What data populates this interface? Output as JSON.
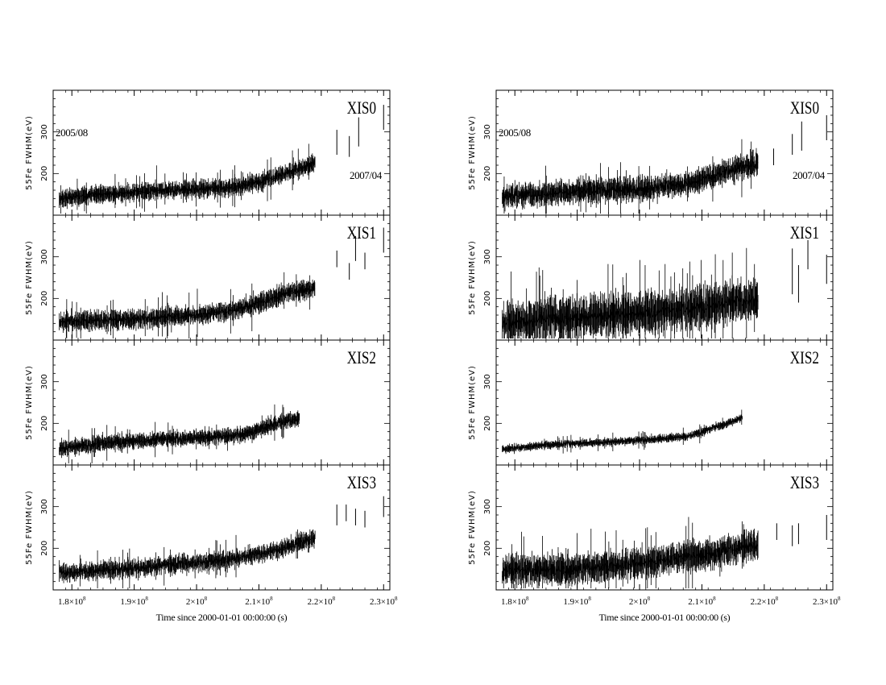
{
  "figure": {
    "x_axis_label": "Time since 2000-01-01 00:00:00 (s)",
    "y_axis_label": "55Fe FWHM(eV)",
    "annotation_start": "2005/08",
    "annotation_end": "2007/04"
  },
  "chart_data": [
    {
      "type": "scatter",
      "column": "left",
      "panel": "XIS0",
      "title": "XIS0",
      "xlabel": "",
      "ylabel": "55Fe FWHM(eV)",
      "xlim": [
        177000000.0,
        231000000.0
      ],
      "ylim": [
        100,
        400
      ],
      "xticks": [
        "1.8×10^8",
        "1.9×10^8",
        "2×10^8",
        "2.1×10^8",
        "2.2×10^8",
        "2.3×10^8"
      ],
      "yticks": [
        "200",
        "300"
      ],
      "annotations": [
        "2005/08",
        "2007/04"
      ],
      "trend": {
        "x": [
          178000000.0,
          185000000.0,
          190000000.0,
          195000000.0,
          200000000.0,
          205000000.0,
          208000000.0,
          211000000.0,
          214000000.0,
          217000000.0,
          219000000.0
        ],
        "y": [
          140,
          150,
          155,
          160,
          162,
          165,
          172,
          185,
          200,
          215,
          225
        ]
      },
      "scatter_fwhm": 13,
      "errorbar_len": 16,
      "late_points": [
        {
          "x": 222500000.0,
          "y": 275,
          "err": 30
        },
        {
          "x": 224500000.0,
          "y": 265,
          "err": 25
        },
        {
          "x": 226000000.0,
          "y": 300,
          "err": 35
        },
        {
          "x": 230000000.0,
          "y": 335,
          "err": 30
        }
      ],
      "end_x": 219000000.0,
      "seed": 11
    },
    {
      "type": "scatter",
      "column": "left",
      "panel": "XIS1",
      "title": "XIS1",
      "xlabel": "",
      "ylabel": "55Fe FWHM(eV)",
      "xlim": [
        177000000.0,
        231000000.0
      ],
      "ylim": [
        100,
        400
      ],
      "xticks": [
        "1.8×10^8",
        "1.9×10^8",
        "2×10^8",
        "2.1×10^8",
        "2.2×10^8",
        "2.3×10^8"
      ],
      "yticks": [
        "200",
        "300"
      ],
      "annotations": [],
      "trend": {
        "x": [
          178000000.0,
          185000000.0,
          190000000.0,
          195000000.0,
          200000000.0,
          205000000.0,
          208000000.0,
          211000000.0,
          214000000.0,
          217000000.0,
          219000000.0
        ],
        "y": [
          143,
          148,
          150,
          155,
          160,
          170,
          180,
          195,
          210,
          220,
          225
        ]
      },
      "scatter_fwhm": 13,
      "errorbar_len": 18,
      "late_points": [
        {
          "x": 222500000.0,
          "y": 295,
          "err": 20
        },
        {
          "x": 224500000.0,
          "y": 265,
          "err": 20
        },
        {
          "x": 225500000.0,
          "y": 320,
          "err": 30
        },
        {
          "x": 227000000.0,
          "y": 290,
          "err": 20
        },
        {
          "x": 230000000.0,
          "y": 340,
          "err": 30
        }
      ],
      "end_x": 219000000.0,
      "seed": 23
    },
    {
      "type": "scatter",
      "column": "left",
      "panel": "XIS2",
      "title": "XIS2",
      "xlabel": "",
      "ylabel": "55Fe FWHM(eV)",
      "xlim": [
        177000000.0,
        231000000.0
      ],
      "ylim": [
        100,
        400
      ],
      "xticks": [
        "1.8×10^8",
        "1.9×10^8",
        "2×10^8",
        "2.1×10^8",
        "2.2×10^8",
        "2.3×10^8"
      ],
      "yticks": [
        "200",
        "300"
      ],
      "annotations": [],
      "trend": {
        "x": [
          178000000.0,
          185000000.0,
          190000000.0,
          195000000.0,
          200000000.0,
          205000000.0,
          208000000.0,
          211000000.0,
          213000000.0,
          215000000.0,
          216500000.0
        ],
        "y": [
          140,
          152,
          158,
          162,
          165,
          170,
          175,
          190,
          200,
          208,
          212
        ]
      },
      "scatter_fwhm": 11,
      "errorbar_len": 14,
      "late_points": [],
      "end_x": 216500000.0,
      "seed": 37
    },
    {
      "type": "scatter",
      "column": "left",
      "panel": "XIS3",
      "title": "XIS3",
      "xlabel": "Time since 2000-01-01 00:00:00 (s)",
      "ylabel": "55Fe FWHM(eV)",
      "xlim": [
        177000000.0,
        231000000.0
      ],
      "ylim": [
        100,
        400
      ],
      "xticks": [
        "1.8×10^8",
        "1.9×10^8",
        "2×10^8",
        "2.1×10^8",
        "2.2×10^8",
        "2.3×10^8"
      ],
      "yticks": [
        "200",
        "300"
      ],
      "annotations": [],
      "trend": {
        "x": [
          178000000.0,
          185000000.0,
          190000000.0,
          195000000.0,
          200000000.0,
          205000000.0,
          208000000.0,
          211000000.0,
          214000000.0,
          217000000.0,
          219000000.0
        ],
        "y": [
          140,
          148,
          152,
          160,
          165,
          172,
          180,
          190,
          200,
          215,
          225
        ]
      },
      "scatter_fwhm": 13,
      "errorbar_len": 16,
      "late_points": [
        {
          "x": 222500000.0,
          "y": 280,
          "err": 25
        },
        {
          "x": 224000000.0,
          "y": 285,
          "err": 20
        },
        {
          "x": 225500000.0,
          "y": 275,
          "err": 20
        },
        {
          "x": 227000000.0,
          "y": 270,
          "err": 20
        },
        {
          "x": 230000000.0,
          "y": 300,
          "err": 25
        }
      ],
      "end_x": 219000000.0,
      "seed": 41
    },
    {
      "type": "scatter",
      "column": "right",
      "panel": "XIS0",
      "title": "XIS0",
      "xlabel": "",
      "ylabel": "55Fe FWHM(eV)",
      "xlim": [
        177000000.0,
        231000000.0
      ],
      "ylim": [
        100,
        400
      ],
      "xticks": [
        "1.8×10^8",
        "1.9×10^8",
        "2×10^8",
        "2.1×10^8",
        "2.2×10^8",
        "2.3×10^8"
      ],
      "yticks": [
        "200",
        "300"
      ],
      "annotations": [
        "2005/08",
        "2007/04"
      ],
      "trend": {
        "x": [
          178000000.0,
          185000000.0,
          190000000.0,
          195000000.0,
          200000000.0,
          205000000.0,
          208000000.0,
          211000000.0,
          214000000.0,
          217000000.0,
          219000000.0
        ],
        "y": [
          145,
          152,
          157,
          160,
          165,
          170,
          178,
          190,
          205,
          218,
          225
        ]
      },
      "scatter_fwhm": 18,
      "errorbar_len": 22,
      "late_points": [
        {
          "x": 221500000.0,
          "y": 240,
          "err": 20
        },
        {
          "x": 224500000.0,
          "y": 270,
          "err": 25
        },
        {
          "x": 226000000.0,
          "y": 290,
          "err": 35
        },
        {
          "x": 230000000.0,
          "y": 310,
          "err": 30
        }
      ],
      "end_x": 219000000.0,
      "seed": 53
    },
    {
      "type": "scatter",
      "column": "right",
      "panel": "XIS1",
      "title": "XIS1",
      "xlabel": "",
      "ylabel": "55Fe FWHM(eV)",
      "xlim": [
        177000000.0,
        231000000.0
      ],
      "ylim": [
        100,
        400
      ],
      "xticks": [
        "1.8×10^8",
        "1.9×10^8",
        "2×10^8",
        "2.1×10^8",
        "2.2×10^8",
        "2.3×10^8"
      ],
      "yticks": [
        "200",
        "300"
      ],
      "annotations": [],
      "trend": {
        "x": [
          178000000.0,
          185000000.0,
          190000000.0,
          195000000.0,
          200000000.0,
          205000000.0,
          208000000.0,
          211000000.0,
          214000000.0,
          217000000.0,
          219000000.0
        ],
        "y": [
          140,
          150,
          155,
          160,
          165,
          170,
          175,
          180,
          190,
          195,
          200
        ]
      },
      "scatter_fwhm": 24,
      "errorbar_len": 40,
      "late_points": [
        {
          "x": 224500000.0,
          "y": 265,
          "err": 55
        },
        {
          "x": 225500000.0,
          "y": 235,
          "err": 45
        },
        {
          "x": 227000000.0,
          "y": 305,
          "err": 35
        },
        {
          "x": 230000000.0,
          "y": 270,
          "err": 35
        }
      ],
      "end_x": 219000000.0,
      "seed": 67
    },
    {
      "type": "scatter",
      "column": "right",
      "panel": "XIS2",
      "title": "XIS2",
      "xlabel": "",
      "ylabel": "55Fe FWHM(eV)",
      "xlim": [
        177000000.0,
        231000000.0
      ],
      "ylim": [
        100,
        400
      ],
      "xticks": [
        "1.8×10^8",
        "1.9×10^8",
        "2×10^8",
        "2.1×10^8",
        "2.2×10^8",
        "2.3×10^8"
      ],
      "yticks": [
        "200",
        "300"
      ],
      "annotations": [],
      "trend": {
        "x": [
          178000000.0,
          185000000.0,
          190000000.0,
          195000000.0,
          200000000.0,
          205000000.0,
          208000000.0,
          211000000.0,
          213000000.0,
          215000000.0,
          216500000.0
        ],
        "y": [
          138,
          148,
          152,
          155,
          160,
          165,
          170,
          185,
          195,
          205,
          215
        ]
      },
      "scatter_fwhm": 6,
      "errorbar_len": 7,
      "late_points": [],
      "end_x": 216500000.0,
      "seed": 79
    },
    {
      "type": "scatter",
      "column": "right",
      "panel": "XIS3",
      "title": "XIS3",
      "xlabel": "Time since 2000-01-01 00:00:00 (s)",
      "ylabel": "55Fe FWHM(eV)",
      "xlim": [
        177000000.0,
        231000000.0
      ],
      "ylim": [
        100,
        400
      ],
      "xticks": [
        "1.8×10^8",
        "1.9×10^8",
        "2×10^8",
        "2.1×10^8",
        "2.2×10^8",
        "2.3×10^8"
      ],
      "yticks": [
        "200",
        "300"
      ],
      "annotations": [],
      "trend": {
        "x": [
          178000000.0,
          185000000.0,
          190000000.0,
          195000000.0,
          200000000.0,
          205000000.0,
          208000000.0,
          211000000.0,
          214000000.0,
          217000000.0,
          219000000.0
        ],
        "y": [
          145,
          148,
          150,
          155,
          165,
          175,
          180,
          185,
          195,
          205,
          210
        ]
      },
      "scatter_fwhm": 20,
      "errorbar_len": 28,
      "late_points": [
        {
          "x": 222000000.0,
          "y": 240,
          "err": 20
        },
        {
          "x": 224500000.0,
          "y": 230,
          "err": 25
        },
        {
          "x": 225500000.0,
          "y": 235,
          "err": 25
        },
        {
          "x": 230000000.0,
          "y": 250,
          "err": 30
        }
      ],
      "end_x": 219000000.0,
      "seed": 97
    }
  ]
}
